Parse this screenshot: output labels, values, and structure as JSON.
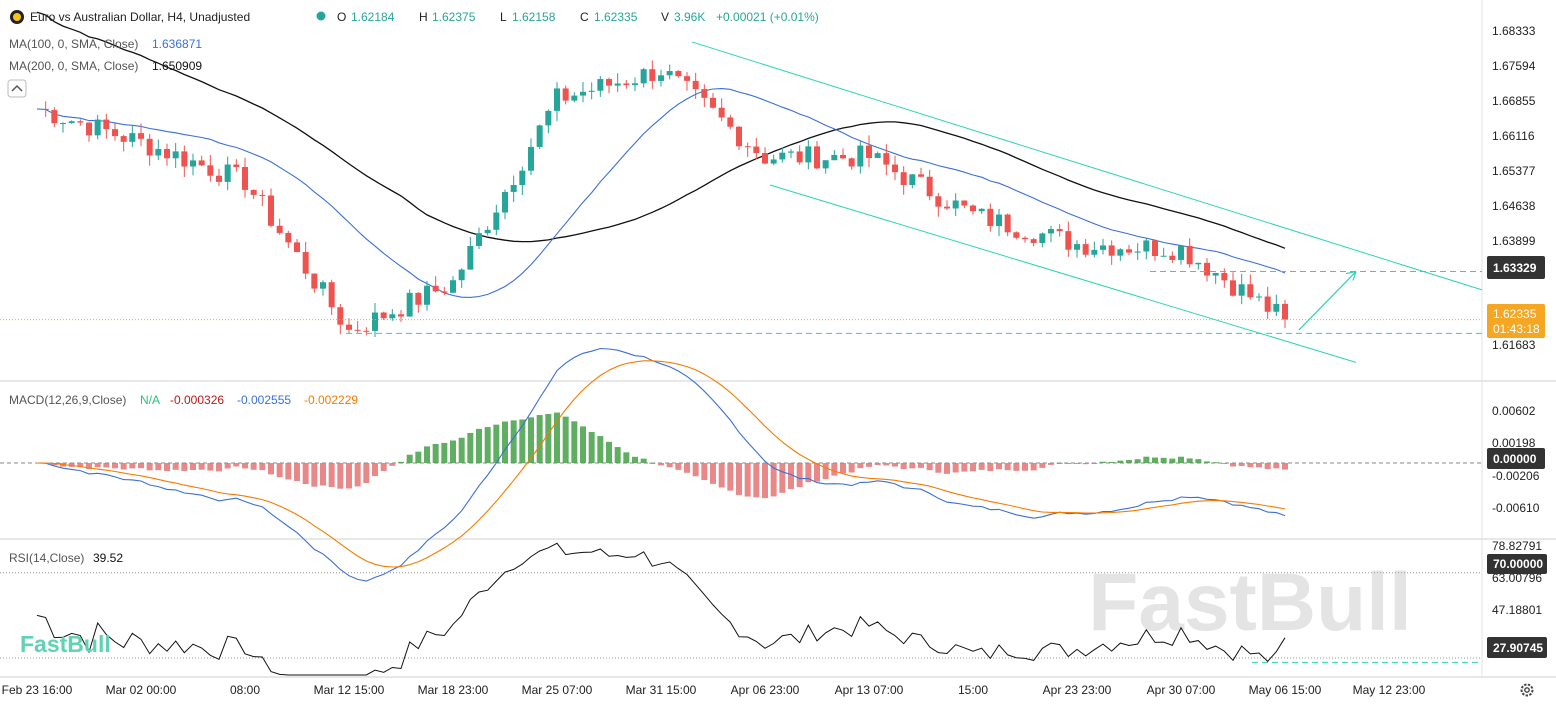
{
  "header": {
    "symbol": "Euro vs Australian Dollar, H4, Unadjusted",
    "o_label": "O",
    "o_value": "1.62184",
    "h_label": "H",
    "h_value": "1.62375",
    "l_label": "L",
    "l_value": "1.62158",
    "c_label": "C",
    "c_value": "1.62335",
    "v_label": "V",
    "v_value": "3.96K",
    "change": "+0.00021 (+0.01%)"
  },
  "indicators": {
    "ma100_label": "MA(100, 0, SMA, Close)",
    "ma100_value": "1.636871",
    "ma200_label": "MA(200, 0, SMA, Close)",
    "ma200_value": "1.650909",
    "macd_label": "MACD(12,26,9,Close)",
    "macd_na": "N/A",
    "macd_v1": "-0.000326",
    "macd_v2": "-0.002555",
    "macd_v3": "-0.002229",
    "rsi_label": "RSI(14,Close)",
    "rsi_value": "39.52"
  },
  "price_axis": {
    "ticks": [
      "1.68333",
      "1.67594",
      "1.66855",
      "1.66116",
      "1.65377",
      "1.64638",
      "1.63899",
      "1.61683"
    ],
    "badge_target": "1.63329",
    "badge_price": "1.62335",
    "badge_timer": "01:43:18"
  },
  "macd_axis": {
    "ticks": [
      "0.00602",
      "0.00198",
      "-0.00206",
      "-0.00610"
    ],
    "badge_zero": "0.00000"
  },
  "rsi_axis": {
    "ticks": [
      "78.82791",
      "63.00796",
      "47.18801"
    ],
    "badge_70": "70.00000",
    "badge_low": "27.90745"
  },
  "time_axis": {
    "labels": [
      "Feb 23 16:00",
      "Mar 02 00:00",
      "08:00",
      "Mar 12 15:00",
      "Mar 18 23:00",
      "Mar 25 07:00",
      "Mar 31 15:00",
      "Apr 06 23:00",
      "Apr 13 07:00",
      "15:00",
      "Apr 23 23:00",
      "Apr 30 07:00",
      "May 06 15:00",
      "May 12 23:00"
    ]
  },
  "brand": {
    "watermark": "FastBull",
    "logo": "FastBull"
  },
  "colors": {
    "up": "#26a69a",
    "down": "#ef5350",
    "ma100": "#3b6fd8",
    "ma200": "#111111",
    "channel": "#2ed3b7",
    "macd_line": "#3b6fd8",
    "signal_line": "#f57c00",
    "price_badge": "#f5a623"
  },
  "chart_data": {
    "type": "candlestick",
    "title": "Euro vs Australian Dollar, H4, Unadjusted",
    "ylim": [
      1.6125,
      1.687
    ],
    "price_anchors": [
      {
        "x": "Feb 23 16:00",
        "close": 1.667
      },
      {
        "x": "Mar 02 00:00",
        "close": 1.66
      },
      {
        "x": "08:00",
        "close": 1.652
      },
      {
        "x": "Mar 12 15:00",
        "close": 1.621
      },
      {
        "x": "Mar 18 23:00",
        "close": 1.631
      },
      {
        "x": "Mar 25 07:00",
        "close": 1.669
      },
      {
        "x": "Mar 31 15:00",
        "close": 1.675
      },
      {
        "x": "Apr 06 23:00",
        "close": 1.657
      },
      {
        "x": "Apr 13 07:00",
        "close": 1.657
      },
      {
        "x": "15:00",
        "close": 1.645
      },
      {
        "x": "Apr 23 23:00",
        "close": 1.639
      },
      {
        "x": "Apr 30 07:00",
        "close": 1.638
      },
      {
        "x": "May 06 15:00",
        "close": 1.6233
      }
    ],
    "current_price": 1.62335,
    "target_level": 1.63329,
    "support_level": 1.6205,
    "macd": {
      "ylim": [
        -0.0085,
        0.0092
      ],
      "zero": 0
    },
    "rsi": {
      "ylim": [
        22,
        84
      ],
      "levels": [
        70,
        27.90745
      ],
      "last": 39.52
    }
  }
}
